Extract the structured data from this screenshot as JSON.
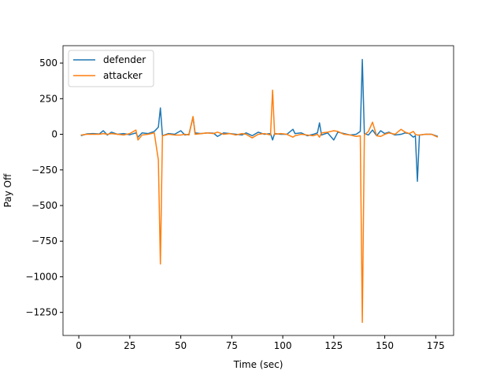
{
  "chart_data": {
    "type": "line",
    "x_label": "Time (sec)",
    "y_label": "Pay Off",
    "x": [
      1,
      4,
      7,
      10,
      12,
      14,
      16,
      19,
      22,
      25,
      28,
      29,
      31,
      34,
      37,
      39,
      40,
      41,
      44,
      47,
      50,
      52,
      54,
      56,
      57,
      60,
      63,
      66,
      68,
      71,
      74,
      77,
      80,
      82,
      85,
      88,
      91,
      94,
      95,
      96,
      99,
      102,
      105,
      106,
      109,
      112,
      115,
      117,
      118,
      119,
      122,
      125,
      127,
      130,
      133,
      136,
      138,
      139,
      140,
      142,
      144,
      146,
      148,
      150,
      152,
      155,
      158,
      160,
      162,
      164,
      165,
      166,
      167,
      170,
      173,
      176
    ],
    "series": [
      {
        "name": "defender",
        "color": "#1f77b4",
        "values": [
          -10,
          3,
          5,
          2,
          25,
          -5,
          15,
          0,
          5,
          -3,
          10,
          -20,
          10,
          5,
          20,
          50,
          185,
          -10,
          5,
          0,
          25,
          -5,
          0,
          120,
          10,
          5,
          10,
          8,
          -15,
          10,
          5,
          0,
          -5,
          10,
          -10,
          15,
          0,
          5,
          -40,
          5,
          0,
          0,
          35,
          5,
          10,
          -10,
          0,
          10,
          80,
          -5,
          10,
          -40,
          15,
          5,
          -5,
          0,
          20,
          525,
          5,
          -5,
          30,
          -10,
          25,
          5,
          15,
          -5,
          0,
          10,
          5,
          -20,
          -10,
          -330,
          -5,
          0,
          0,
          -15
        ]
      },
      {
        "name": "attacker",
        "color": "#ff7f0e",
        "values": [
          -5,
          0,
          0,
          0,
          5,
          0,
          5,
          0,
          -5,
          5,
          30,
          -40,
          -5,
          0,
          10,
          -180,
          -910,
          -10,
          0,
          -5,
          -5,
          0,
          -5,
          125,
          0,
          5,
          10,
          5,
          15,
          0,
          5,
          -5,
          5,
          0,
          -25,
          0,
          5,
          -5,
          310,
          0,
          5,
          0,
          -20,
          -10,
          0,
          -5,
          -10,
          0,
          -20,
          10,
          15,
          25,
          20,
          0,
          -5,
          -15,
          -10,
          -1320,
          -5,
          20,
          85,
          -10,
          -15,
          0,
          10,
          0,
          35,
          15,
          5,
          20,
          0,
          -5,
          -5,
          0,
          0,
          -20
        ]
      }
    ],
    "xlim": [
      -7.75,
      183.75
    ],
    "ylim": [
      -1412,
      622
    ],
    "xticks": [
      0,
      25,
      50,
      75,
      100,
      125,
      150,
      175
    ],
    "yticks": [
      {
        "value": -1250,
        "label": "−1250"
      },
      {
        "value": -1000,
        "label": "−1000"
      },
      {
        "value": -750,
        "label": "−750"
      },
      {
        "value": -500,
        "label": "−500"
      },
      {
        "value": -250,
        "label": "−250"
      },
      0,
      250,
      500
    ],
    "legend": "upper left"
  }
}
